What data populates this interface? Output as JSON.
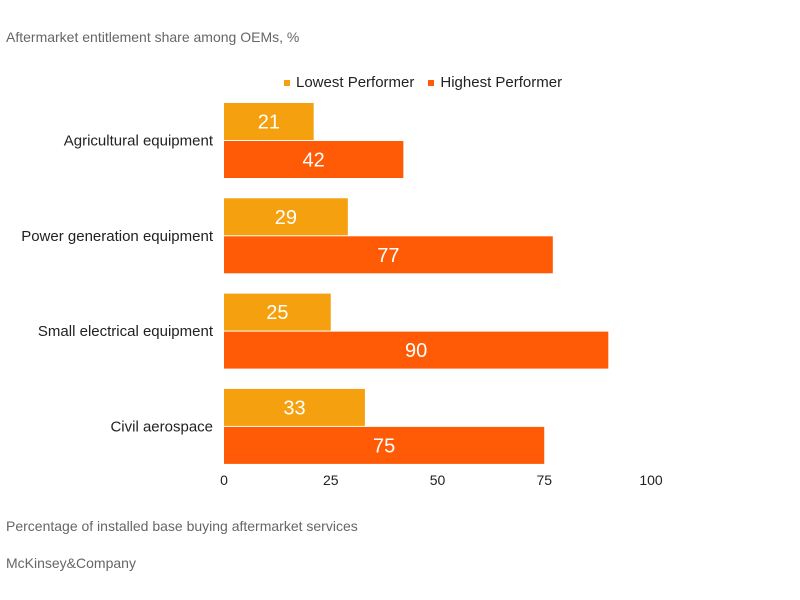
{
  "chart_data": {
    "type": "bar",
    "orientation": "horizontal",
    "subtitle": "Aftermarket entitlement share among OEMs, %",
    "xlabel": "Percentage of installed base buying aftermarket services",
    "source": "McKinsey&Company",
    "categories": [
      "Agricultural equipment",
      "Power generation equipment",
      "Small electrical equipment",
      "Civil aerospace"
    ],
    "series": [
      {
        "name": "Lowest Performer",
        "color": "#F5A00E",
        "values": [
          21,
          29,
          25,
          33
        ]
      },
      {
        "name": "Highest Performer",
        "color": "#FF5A05",
        "values": [
          42,
          77,
          90,
          75
        ]
      }
    ],
    "xlim": [
      0,
      100
    ],
    "xticks": [
      0,
      25,
      50,
      75,
      100
    ],
    "grid": false,
    "legend_position": "top"
  }
}
